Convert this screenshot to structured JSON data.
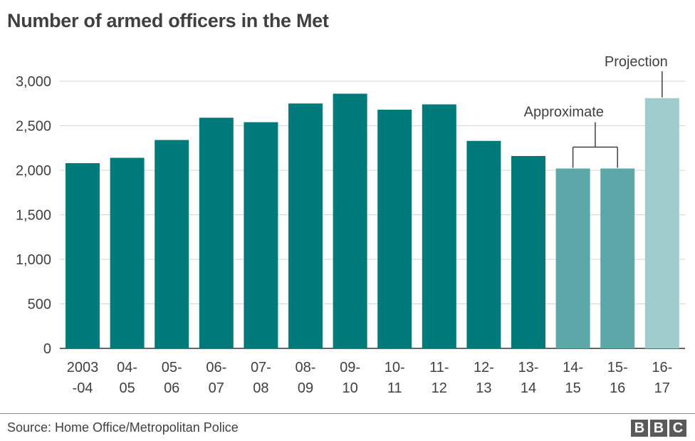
{
  "chart_data": {
    "type": "bar",
    "title": "Number of armed officers in the Met",
    "categories": [
      [
        "2003",
        "-04"
      ],
      [
        "04-",
        "05"
      ],
      [
        "05-",
        "06"
      ],
      [
        "06-",
        "07"
      ],
      [
        "07-",
        "08"
      ],
      [
        "08-",
        "09"
      ],
      [
        "09-",
        "10"
      ],
      [
        "10-",
        "11"
      ],
      [
        "11-",
        "12"
      ],
      [
        "12-",
        "13"
      ],
      [
        "13-",
        "14"
      ],
      [
        "14-",
        "15"
      ],
      [
        "15-",
        "16"
      ],
      [
        "16-",
        "17"
      ]
    ],
    "values": [
      2080,
      2140,
      2340,
      2590,
      2540,
      2750,
      2860,
      2680,
      2740,
      2330,
      2160,
      2020,
      2020,
      2810
    ],
    "status": [
      "actual",
      "actual",
      "actual",
      "actual",
      "actual",
      "actual",
      "actual",
      "actual",
      "actual",
      "actual",
      "actual",
      "approximate",
      "approximate",
      "projection"
    ],
    "colors": {
      "actual": "#007a7a",
      "approximate": "#5ca8a8",
      "projection": "#a0cccc"
    },
    "ylim": [
      0,
      3000
    ],
    "yticks": [
      0,
      500,
      1000,
      1500,
      2000,
      2500,
      3000
    ],
    "ytick_labels": [
      "0",
      "500",
      "1,000",
      "1,500",
      "2,000",
      "2,500",
      "3,000"
    ],
    "grid": true,
    "annotations": {
      "approximate": "Approximate",
      "projection": "Projection"
    }
  },
  "footer": {
    "source": "Source: Home Office/Metropolitan Police",
    "logo_letters": [
      "B",
      "B",
      "C"
    ]
  }
}
